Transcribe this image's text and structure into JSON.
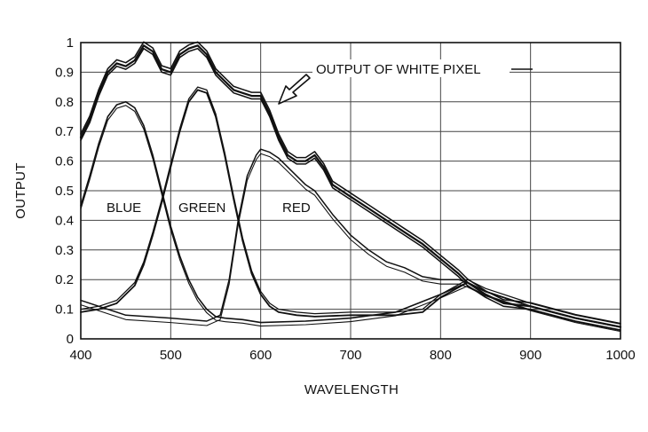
{
  "chart_data": {
    "type": "line",
    "title": "",
    "xlabel": "WAVELENGTH",
    "ylabel": "OUTPUT",
    "xlim": [
      400,
      1000
    ],
    "ylim": [
      0,
      1
    ],
    "x_ticks": [
      "400",
      "500",
      "600",
      "700",
      "800",
      "900",
      "1000"
    ],
    "y_ticks": [
      "0",
      "0.1",
      "0.2",
      "0.3",
      "0.4",
      "0.5",
      "0.6",
      "0.7",
      "0.8",
      "0.9",
      "1"
    ],
    "grid": true,
    "annotations": {
      "blue": "BLUE",
      "green": "GREEN",
      "red": "RED",
      "white": "OUTPUT OF WHITE PIXEL"
    },
    "series": [
      {
        "name": "BLUE",
        "x": [
          400,
          410,
          420,
          430,
          440,
          450,
          460,
          470,
          480,
          490,
          500,
          510,
          520,
          530,
          540,
          550,
          560,
          580,
          600,
          650,
          700,
          750,
          800,
          830,
          850,
          900,
          950,
          1000
        ],
        "y": [
          0.45,
          0.55,
          0.66,
          0.75,
          0.79,
          0.8,
          0.78,
          0.72,
          0.62,
          0.5,
          0.38,
          0.28,
          0.2,
          0.14,
          0.1,
          0.075,
          0.07,
          0.065,
          0.055,
          0.06,
          0.07,
          0.09,
          0.15,
          0.19,
          0.16,
          0.11,
          0.07,
          0.04
        ]
      },
      {
        "name": "GREEN",
        "x": [
          400,
          420,
          440,
          460,
          470,
          480,
          490,
          500,
          510,
          520,
          530,
          540,
          550,
          560,
          570,
          580,
          590,
          600,
          610,
          620,
          640,
          660,
          700,
          750,
          780,
          800,
          830,
          850,
          900,
          950,
          1000
        ],
        "y": [
          0.09,
          0.1,
          0.12,
          0.18,
          0.25,
          0.35,
          0.46,
          0.58,
          0.7,
          0.8,
          0.84,
          0.83,
          0.75,
          0.62,
          0.47,
          0.33,
          0.22,
          0.15,
          0.11,
          0.09,
          0.08,
          0.075,
          0.08,
          0.08,
          0.09,
          0.14,
          0.19,
          0.16,
          0.11,
          0.07,
          0.04
        ]
      },
      {
        "name": "RED",
        "x": [
          400,
          450,
          500,
          540,
          555,
          565,
          575,
          585,
          595,
          600,
          610,
          620,
          640,
          650,
          660,
          680,
          700,
          720,
          740,
          760,
          780,
          800,
          820,
          830,
          850,
          900,
          950,
          1000
        ],
        "y": [
          0.13,
          0.08,
          0.07,
          0.06,
          0.08,
          0.2,
          0.4,
          0.55,
          0.62,
          0.64,
          0.63,
          0.61,
          0.55,
          0.52,
          0.5,
          0.42,
          0.35,
          0.3,
          0.26,
          0.24,
          0.21,
          0.2,
          0.2,
          0.19,
          0.16,
          0.11,
          0.07,
          0.04
        ]
      },
      {
        "name": "OUTPUT OF WHITE PIXEL",
        "x": [
          400,
          410,
          420,
          430,
          440,
          450,
          460,
          470,
          480,
          490,
          500,
          510,
          520,
          530,
          540,
          550,
          560,
          570,
          580,
          590,
          600,
          610,
          620,
          630,
          640,
          650,
          660,
          670,
          680,
          700,
          720,
          740,
          760,
          780,
          800,
          820,
          830,
          850,
          870,
          900,
          950,
          1000
        ],
        "y": [
          0.68,
          0.74,
          0.83,
          0.9,
          0.93,
          0.92,
          0.94,
          0.99,
          0.97,
          0.91,
          0.9,
          0.96,
          0.98,
          0.99,
          0.96,
          0.9,
          0.87,
          0.84,
          0.83,
          0.82,
          0.82,
          0.76,
          0.68,
          0.62,
          0.6,
          0.6,
          0.62,
          0.58,
          0.52,
          0.48,
          0.44,
          0.4,
          0.36,
          0.32,
          0.27,
          0.22,
          0.19,
          0.15,
          0.12,
          0.11,
          0.07,
          0.04
        ]
      }
    ]
  }
}
